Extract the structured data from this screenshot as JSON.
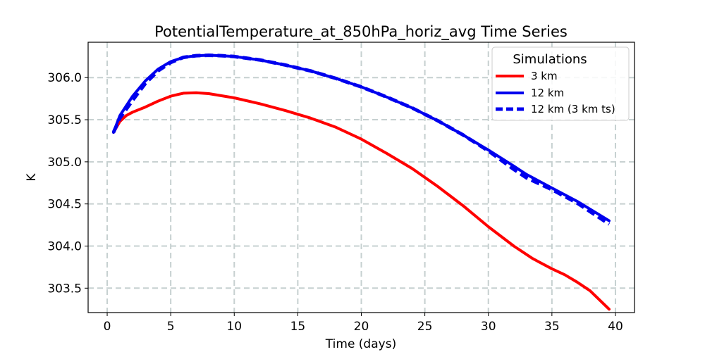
{
  "chart_data": {
    "type": "line",
    "title": "PotentialTemperature_at_850hPa_horiz_avg Time Series",
    "xlabel": "Time (days)",
    "ylabel": "K",
    "xlim": [
      -1.5,
      41.5
    ],
    "ylim": [
      303.21,
      306.42
    ],
    "xticks": [
      0,
      5,
      10,
      15,
      20,
      25,
      30,
      35,
      40
    ],
    "yticks": [
      303.5,
      304.0,
      304.5,
      305.0,
      305.5,
      306.0
    ],
    "xtick_labels": [
      "0",
      "5",
      "10",
      "15",
      "20",
      "25",
      "30",
      "35",
      "40"
    ],
    "ytick_labels": [
      "303.5",
      "304.0",
      "304.5",
      "305.0",
      "305.5",
      "306.0"
    ],
    "grid": true,
    "legend": {
      "title": "Simulations",
      "position": "top-right"
    },
    "series": [
      {
        "name": "3 km",
        "color": "#ff0000",
        "style": "solid",
        "x": [
          0.5,
          1,
          1.5,
          2,
          3,
          4,
          5,
          6,
          7,
          8,
          10,
          12,
          14,
          16,
          18,
          20,
          22,
          24,
          26,
          28,
          30,
          32,
          33.5,
          35,
          36,
          37,
          38,
          39.5
        ],
        "y": [
          305.35,
          305.48,
          305.55,
          305.59,
          305.65,
          305.72,
          305.78,
          305.815,
          305.82,
          305.81,
          305.76,
          305.69,
          305.61,
          305.52,
          305.41,
          305.27,
          305.1,
          304.92,
          304.71,
          304.48,
          304.23,
          304.0,
          303.85,
          303.73,
          303.66,
          303.57,
          303.47,
          303.25
        ]
      },
      {
        "name": "12 km",
        "color": "#0000ee",
        "style": "solid",
        "x": [
          0.5,
          1,
          2,
          3,
          4,
          5,
          6,
          7,
          8,
          9,
          10,
          12,
          14,
          16,
          18,
          20,
          22,
          24,
          26,
          28,
          30,
          32,
          33,
          35,
          37,
          39.5
        ],
        "y": [
          305.35,
          305.55,
          305.78,
          305.96,
          306.1,
          306.19,
          306.24,
          306.26,
          306.265,
          306.26,
          306.25,
          306.21,
          306.15,
          306.08,
          305.99,
          305.89,
          305.77,
          305.64,
          305.49,
          305.32,
          305.14,
          304.95,
          304.85,
          304.69,
          304.53,
          304.3
        ]
      },
      {
        "name": "12 km (3 km ts)",
        "color": "#0000ee",
        "style": "dashed",
        "x": [
          0.5,
          1,
          2,
          3,
          4,
          5,
          6,
          7,
          8,
          9,
          10,
          12,
          14,
          16,
          18,
          20,
          22,
          24,
          26,
          28,
          30,
          32,
          33,
          35,
          37,
          39.5
        ],
        "y": [
          305.35,
          305.52,
          305.73,
          305.93,
          306.08,
          306.18,
          306.24,
          306.26,
          306.265,
          306.26,
          306.25,
          306.21,
          306.15,
          306.08,
          305.99,
          305.89,
          305.77,
          305.64,
          305.49,
          305.32,
          305.13,
          304.91,
          304.81,
          304.67,
          304.51,
          304.26
        ]
      }
    ]
  }
}
